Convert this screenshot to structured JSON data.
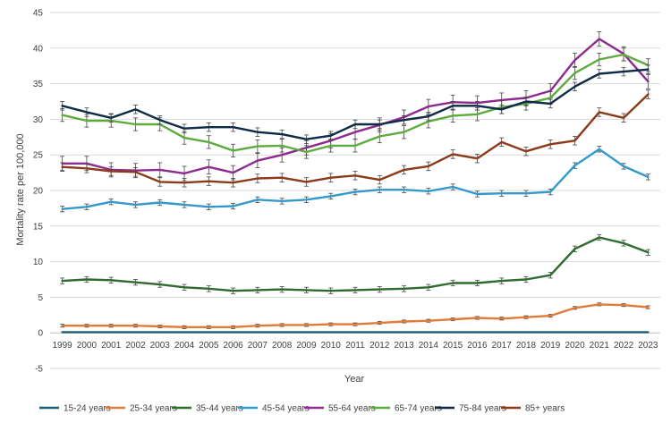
{
  "chart_data": {
    "type": "line",
    "title": "",
    "xlabel": "Year",
    "ylabel": "Mortality rate per 100,000",
    "ylim": [
      -5,
      45
    ],
    "yticks": [
      -5,
      0,
      5,
      10,
      15,
      20,
      25,
      30,
      35,
      40,
      45
    ],
    "grid": true,
    "legend_position": "bottom",
    "x": [
      "1999",
      "2000",
      "2001",
      "2002",
      "2003",
      "2004",
      "2005",
      "2006",
      "2007",
      "2008",
      "2009",
      "2010",
      "2011",
      "2012",
      "2013",
      "2014",
      "2015",
      "2016",
      "2017",
      "2018",
      "2019",
      "2020",
      "2021",
      "2022",
      "2023"
    ],
    "series": [
      {
        "name": "15-24 years",
        "color": "#1f5c7a",
        "values": [
          0.1,
          0.1,
          0.1,
          0.1,
          0.1,
          0.1,
          0.1,
          0.1,
          0.1,
          0.1,
          0.1,
          0.1,
          0.1,
          0.1,
          0.1,
          0.1,
          0.1,
          0.1,
          0.1,
          0.1,
          0.1,
          0.1,
          0.1,
          0.1,
          0.1
        ],
        "error": 0.1
      },
      {
        "name": "25-34 years",
        "color": "#e07b39",
        "values": [
          1.0,
          1.0,
          1.0,
          1.0,
          0.9,
          0.8,
          0.8,
          0.8,
          1.0,
          1.1,
          1.1,
          1.2,
          1.2,
          1.4,
          1.6,
          1.7,
          1.9,
          2.1,
          2.0,
          2.2,
          2.4,
          3.5,
          4.0,
          3.9,
          3.6
        ],
        "error": 0.2
      },
      {
        "name": "35-44 years",
        "color": "#2e6b2e",
        "values": [
          7.3,
          7.5,
          7.4,
          7.1,
          6.8,
          6.4,
          6.2,
          5.9,
          6.0,
          6.1,
          6.0,
          5.9,
          6.0,
          6.1,
          6.2,
          6.4,
          7.0,
          7.0,
          7.3,
          7.5,
          8.1,
          11.8,
          13.4,
          12.6,
          11.3
        ],
        "error": 0.4
      },
      {
        "name": "45-54 years",
        "color": "#3399cc",
        "values": [
          17.4,
          17.7,
          18.4,
          18.0,
          18.3,
          18.0,
          17.7,
          17.8,
          18.7,
          18.5,
          18.7,
          19.2,
          19.8,
          20.1,
          20.1,
          19.9,
          20.5,
          19.5,
          19.6,
          19.6,
          19.8,
          23.5,
          25.8,
          23.4,
          21.9
        ],
        "error": 0.4
      },
      {
        "name": "55-64 years",
        "color": "#8e2b8e",
        "values": [
          23.8,
          23.8,
          22.9,
          22.8,
          22.9,
          22.4,
          23.3,
          22.5,
          24.2,
          25.0,
          26.0,
          27.0,
          28.2,
          29.2,
          30.3,
          31.8,
          32.4,
          32.3,
          32.7,
          33.0,
          34.0,
          38.3,
          41.3,
          39.2,
          35.3
        ],
        "error": 1.0
      },
      {
        "name": "65-74 years",
        "color": "#5cab3c",
        "values": [
          30.6,
          29.8,
          29.8,
          29.3,
          29.3,
          27.4,
          26.8,
          25.6,
          26.2,
          26.3,
          25.4,
          26.3,
          26.3,
          27.6,
          28.2,
          29.7,
          30.5,
          30.7,
          31.7,
          32.2,
          33.0,
          36.5,
          38.4,
          39.1,
          37.6
        ],
        "error": 0.9
      },
      {
        "name": "75-84 years",
        "color": "#0e2a47",
        "values": [
          31.9,
          31.0,
          30.2,
          31.4,
          29.9,
          28.7,
          28.9,
          28.9,
          28.2,
          27.9,
          27.2,
          27.7,
          29.3,
          29.3,
          29.9,
          30.4,
          31.9,
          31.9,
          31.4,
          32.5,
          32.2,
          34.6,
          36.4,
          36.7,
          37.0
        ],
        "error": 0.6
      },
      {
        "name": "85+ years",
        "color": "#8b3a1a",
        "values": [
          23.3,
          23.1,
          22.7,
          22.6,
          21.2,
          21.1,
          21.3,
          21.1,
          21.7,
          21.8,
          21.2,
          21.8,
          22.1,
          21.5,
          22.9,
          23.4,
          25.1,
          24.5,
          26.8,
          25.5,
          26.5,
          27.0,
          31.0,
          30.2,
          33.5
        ],
        "error": 0.6
      }
    ]
  }
}
